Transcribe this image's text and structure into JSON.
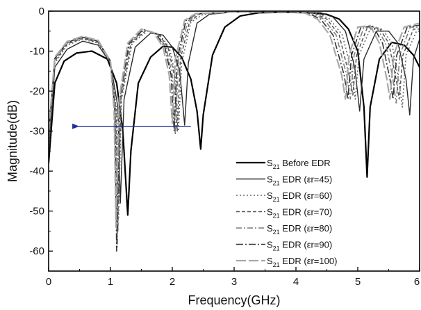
{
  "chart_data": {
    "type": "line",
    "xlabel": "Frequency(GHz)",
    "ylabel": "Magnitude(dB)",
    "xlim": [
      0,
      6
    ],
    "ylim": [
      -65,
      0
    ],
    "x_ticks": [
      "0",
      "1",
      "2",
      "3",
      "4",
      "5",
      "6"
    ],
    "y_ticks": [
      "0",
      "-10",
      "-20",
      "-30",
      "-40",
      "-50",
      "-60"
    ],
    "grid": false,
    "legend_position": "bottom-right",
    "arrow": {
      "from": [
        2.3,
        -28.8
      ],
      "to": [
        0.45,
        -28.8
      ],
      "color": "#1f2f9e"
    },
    "series": [
      {
        "legend": {
          "prefix": "S",
          "sub": "21",
          "suffix": " Before EDR"
        },
        "style": {
          "color": "#000000",
          "dash": "",
          "width": 2.2
        },
        "points": [
          [
            0.0,
            -38
          ],
          [
            0.1,
            -18
          ],
          [
            0.25,
            -12.5
          ],
          [
            0.45,
            -10.5
          ],
          [
            0.7,
            -10
          ],
          [
            0.95,
            -12
          ],
          [
            1.1,
            -18
          ],
          [
            1.2,
            -30
          ],
          [
            1.28,
            -51
          ],
          [
            1.33,
            -35
          ],
          [
            1.45,
            -18
          ],
          [
            1.65,
            -11.5
          ],
          [
            1.85,
            -8.8
          ],
          [
            2.0,
            -9
          ],
          [
            2.15,
            -11.5
          ],
          [
            2.3,
            -17
          ],
          [
            2.4,
            -25
          ],
          [
            2.46,
            -34.5
          ],
          [
            2.5,
            -26
          ],
          [
            2.65,
            -11
          ],
          [
            2.85,
            -4
          ],
          [
            3.1,
            -1.2
          ],
          [
            3.4,
            -0.4
          ],
          [
            3.8,
            -0.3
          ],
          [
            4.2,
            -0.4
          ],
          [
            4.5,
            -0.8
          ],
          [
            4.7,
            -2
          ],
          [
            4.85,
            -4.5
          ],
          [
            5.0,
            -10
          ],
          [
            5.1,
            -24
          ],
          [
            5.15,
            -41.5
          ],
          [
            5.2,
            -24
          ],
          [
            5.35,
            -12
          ],
          [
            5.55,
            -7.8
          ],
          [
            5.75,
            -8.5
          ],
          [
            5.9,
            -11
          ],
          [
            6.0,
            -14
          ]
        ]
      },
      {
        "legend": {
          "prefix": "S",
          "sub": "21",
          "suffix": " EDR (εr=45)"
        },
        "style": {
          "color": "#2a2a2a",
          "dash": "",
          "width": 1.4
        },
        "points": [
          [
            0.0,
            -36
          ],
          [
            0.1,
            -14
          ],
          [
            0.3,
            -9.5
          ],
          [
            0.55,
            -7.5
          ],
          [
            0.8,
            -8.5
          ],
          [
            1.0,
            -13
          ],
          [
            1.12,
            -24
          ],
          [
            1.16,
            -48
          ],
          [
            1.22,
            -22
          ],
          [
            1.4,
            -9
          ],
          [
            1.65,
            -5.5
          ],
          [
            1.85,
            -6
          ],
          [
            2.0,
            -9
          ],
          [
            2.12,
            -15
          ],
          [
            2.2,
            -28.5
          ],
          [
            2.26,
            -13
          ],
          [
            2.4,
            -3
          ],
          [
            2.6,
            -0.8
          ],
          [
            3.0,
            -0.2
          ],
          [
            4.0,
            -0.2
          ],
          [
            4.4,
            -0.4
          ],
          [
            4.6,
            -1.5
          ],
          [
            4.8,
            -5
          ],
          [
            4.95,
            -14
          ],
          [
            5.03,
            -25
          ],
          [
            5.1,
            -12
          ],
          [
            5.3,
            -5
          ],
          [
            5.5,
            -5
          ],
          [
            5.65,
            -8
          ],
          [
            5.78,
            -17
          ],
          [
            5.84,
            -26
          ],
          [
            5.9,
            -12
          ],
          [
            6.0,
            -7
          ]
        ]
      },
      {
        "legend": {
          "prefix": "S",
          "sub": "21",
          "suffix": " EDR (εr=60)"
        },
        "style": {
          "color": "#666666",
          "dash": "2,3",
          "width": 1.6
        },
        "points": [
          [
            0.0,
            -34
          ],
          [
            0.1,
            -13
          ],
          [
            0.3,
            -8.5
          ],
          [
            0.55,
            -7
          ],
          [
            0.8,
            -8
          ],
          [
            1.0,
            -13
          ],
          [
            1.1,
            -25
          ],
          [
            1.13,
            -52
          ],
          [
            1.18,
            -22
          ],
          [
            1.35,
            -8
          ],
          [
            1.6,
            -5
          ],
          [
            1.8,
            -6
          ],
          [
            1.95,
            -9
          ],
          [
            2.05,
            -16
          ],
          [
            2.1,
            -30
          ],
          [
            2.15,
            -13
          ],
          [
            2.3,
            -2.8
          ],
          [
            2.5,
            -0.8
          ],
          [
            3.0,
            -0.2
          ],
          [
            4.0,
            -0.2
          ],
          [
            4.35,
            -0.5
          ],
          [
            4.55,
            -2
          ],
          [
            4.75,
            -6
          ],
          [
            4.9,
            -15
          ],
          [
            4.96,
            -22
          ],
          [
            5.02,
            -11
          ],
          [
            5.2,
            -4.5
          ],
          [
            5.4,
            -4.5
          ],
          [
            5.55,
            -8
          ],
          [
            5.67,
            -18
          ],
          [
            5.72,
            -24
          ],
          [
            5.78,
            -11
          ],
          [
            5.95,
            -5
          ],
          [
            6.0,
            -5
          ]
        ]
      },
      {
        "legend": {
          "prefix": "S",
          "sub": "21",
          "suffix": " EDR (εr=70)"
        },
        "style": {
          "color": "#555555",
          "dash": "5,3",
          "width": 1.5
        },
        "points": [
          [
            0.0,
            -33
          ],
          [
            0.1,
            -12.5
          ],
          [
            0.3,
            -8.2
          ],
          [
            0.55,
            -6.8
          ],
          [
            0.8,
            -7.8
          ],
          [
            1.0,
            -12.5
          ],
          [
            1.09,
            -25
          ],
          [
            1.12,
            -55
          ],
          [
            1.17,
            -22
          ],
          [
            1.33,
            -8
          ],
          [
            1.58,
            -4.8
          ],
          [
            1.78,
            -5.8
          ],
          [
            1.93,
            -9
          ],
          [
            2.03,
            -16
          ],
          [
            2.08,
            -30
          ],
          [
            2.13,
            -12
          ],
          [
            2.28,
            -2.6
          ],
          [
            2.45,
            -0.7
          ],
          [
            3.0,
            -0.2
          ],
          [
            4.0,
            -0.2
          ],
          [
            4.3,
            -0.5
          ],
          [
            4.5,
            -2
          ],
          [
            4.7,
            -6
          ],
          [
            4.86,
            -16
          ],
          [
            4.92,
            -21
          ],
          [
            4.98,
            -11
          ],
          [
            5.15,
            -4.2
          ],
          [
            5.35,
            -4.2
          ],
          [
            5.5,
            -8
          ],
          [
            5.62,
            -17
          ],
          [
            5.67,
            -22
          ],
          [
            5.73,
            -11
          ],
          [
            5.9,
            -4.5
          ],
          [
            6.0,
            -4.5
          ]
        ]
      },
      {
        "legend": {
          "prefix": "S",
          "sub": "21",
          "suffix": " EDR (εr=80)"
        },
        "style": {
          "color": "#7a7a7a",
          "dash": "8,3,2,3",
          "width": 1.5
        },
        "points": [
          [
            0.0,
            -32
          ],
          [
            0.1,
            -12
          ],
          [
            0.3,
            -8
          ],
          [
            0.55,
            -6.6
          ],
          [
            0.8,
            -7.6
          ],
          [
            1.0,
            -12.5
          ],
          [
            1.08,
            -25
          ],
          [
            1.11,
            -59
          ],
          [
            1.16,
            -22
          ],
          [
            1.31,
            -8
          ],
          [
            1.55,
            -4.7
          ],
          [
            1.75,
            -5.6
          ],
          [
            1.9,
            -9
          ],
          [
            2.0,
            -16
          ],
          [
            2.05,
            -31
          ],
          [
            2.1,
            -12
          ],
          [
            2.25,
            -2.5
          ],
          [
            2.42,
            -0.7
          ],
          [
            3.0,
            -0.2
          ],
          [
            4.0,
            -0.2
          ],
          [
            4.25,
            -0.5
          ],
          [
            4.45,
            -2
          ],
          [
            4.65,
            -6
          ],
          [
            4.82,
            -16
          ],
          [
            4.88,
            -22
          ],
          [
            4.94,
            -11
          ],
          [
            5.1,
            -4
          ],
          [
            5.3,
            -4
          ],
          [
            5.45,
            -8
          ],
          [
            5.57,
            -17
          ],
          [
            5.62,
            -23
          ],
          [
            5.68,
            -11
          ],
          [
            5.85,
            -4
          ],
          [
            6.0,
            -4
          ]
        ]
      },
      {
        "legend": {
          "prefix": "S",
          "sub": "21",
          "suffix": " EDR (εr=90)"
        },
        "style": {
          "color": "#333333",
          "dash": "10,3,2,3",
          "width": 1.6
        },
        "points": [
          [
            0.0,
            -31
          ],
          [
            0.1,
            -11.8
          ],
          [
            0.3,
            -7.8
          ],
          [
            0.55,
            -6.5
          ],
          [
            0.8,
            -7.5
          ],
          [
            1.0,
            -12.5
          ],
          [
            1.07,
            -25
          ],
          [
            1.1,
            -60
          ],
          [
            1.15,
            -22
          ],
          [
            1.3,
            -8
          ],
          [
            1.53,
            -4.6
          ],
          [
            1.73,
            -5.5
          ],
          [
            1.88,
            -9
          ],
          [
            1.98,
            -16
          ],
          [
            2.03,
            -30
          ],
          [
            2.08,
            -12
          ],
          [
            2.22,
            -2.4
          ],
          [
            2.4,
            -0.6
          ],
          [
            3.0,
            -0.2
          ],
          [
            4.0,
            -0.2
          ],
          [
            4.2,
            -0.5
          ],
          [
            4.4,
            -2
          ],
          [
            4.6,
            -6
          ],
          [
            4.78,
            -16
          ],
          [
            4.84,
            -22
          ],
          [
            4.9,
            -11
          ],
          [
            5.05,
            -4
          ],
          [
            5.25,
            -3.8
          ],
          [
            5.4,
            -8
          ],
          [
            5.52,
            -17
          ],
          [
            5.57,
            -22
          ],
          [
            5.63,
            -11
          ],
          [
            5.8,
            -4
          ],
          [
            6.0,
            -3.5
          ]
        ]
      },
      {
        "legend": {
          "prefix": "S",
          "sub": "21",
          "suffix": " EDR (εr=100)"
        },
        "style": {
          "color": "#a8a8a8",
          "dash": "14,4",
          "width": 2.2
        },
        "points": [
          [
            0.0,
            -30
          ],
          [
            0.1,
            -11.5
          ],
          [
            0.3,
            -7.6
          ],
          [
            0.55,
            -6.3
          ],
          [
            0.8,
            -7.3
          ],
          [
            1.0,
            -12.5
          ],
          [
            1.06,
            -25
          ],
          [
            1.09,
            -54
          ],
          [
            1.14,
            -22
          ],
          [
            1.28,
            -8
          ],
          [
            1.5,
            -4.5
          ],
          [
            1.7,
            -5.4
          ],
          [
            1.85,
            -9
          ],
          [
            1.95,
            -16
          ],
          [
            2.0,
            -28
          ],
          [
            2.05,
            -12
          ],
          [
            2.2,
            -2.3
          ],
          [
            2.38,
            -0.6
          ],
          [
            3.0,
            -0.2
          ],
          [
            4.0,
            -0.2
          ],
          [
            4.15,
            -0.5
          ],
          [
            4.35,
            -2
          ],
          [
            4.55,
            -6
          ],
          [
            4.74,
            -16
          ],
          [
            4.8,
            -22
          ],
          [
            4.86,
            -11
          ],
          [
            5.0,
            -4
          ],
          [
            5.2,
            -3.6
          ],
          [
            5.35,
            -8
          ],
          [
            5.47,
            -17
          ],
          [
            5.52,
            -22
          ],
          [
            5.58,
            -11
          ],
          [
            5.75,
            -4
          ],
          [
            6.0,
            -3
          ]
        ]
      }
    ]
  }
}
